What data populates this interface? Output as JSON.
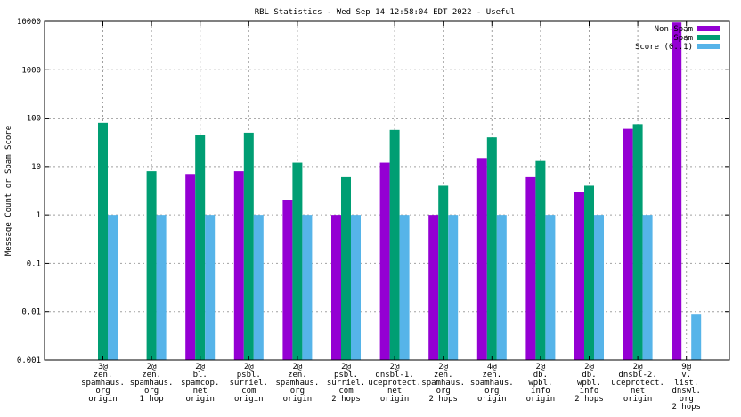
{
  "chart_data": {
    "type": "bar",
    "title": "RBL Statistics - Wed Sep 14 12:58:04 EDT 2022 - Useful",
    "ylabel": "Message Count or Spam Score",
    "xlabel": "",
    "yscale": "log",
    "ylim": [
      0.001,
      10000
    ],
    "yticks": [
      "0.001",
      "0.01",
      "0.1",
      "1",
      "10",
      "100",
      "1000",
      "10000"
    ],
    "grid": true,
    "legend_position": "top-right",
    "categories": [
      [
        "3@",
        "zen.",
        "spamhaus.",
        "org",
        "origin"
      ],
      [
        "2@",
        "zen.",
        "spamhaus.",
        "org",
        "1 hop"
      ],
      [
        "2@",
        "bl.",
        "spamcop.",
        "net",
        "origin"
      ],
      [
        "2@",
        "psbl.",
        "surriel.",
        "com",
        "origin"
      ],
      [
        "2@",
        "zen.",
        "spamhaus.",
        "org",
        "origin"
      ],
      [
        "2@",
        "psbl.",
        "surriel.",
        "com",
        "2 hops"
      ],
      [
        "2@",
        "dnsbl-1.",
        "uceprotect.",
        "net",
        "origin"
      ],
      [
        "2@",
        "zen.",
        "spamhaus.",
        "org",
        "2 hops"
      ],
      [
        "4@",
        "zen.",
        "spamhaus.",
        "org",
        "origin"
      ],
      [
        "2@",
        "db.",
        "wpbl.",
        "info",
        "origin"
      ],
      [
        "2@",
        "db.",
        "wpbl.",
        "info",
        "2 hops"
      ],
      [
        "2@",
        "dnsbl-2.",
        "uceprotect.",
        "net",
        "origin"
      ],
      [
        "9@",
        "v.",
        "list.",
        "dnswl.",
        "org",
        "2 hops"
      ]
    ],
    "series": [
      {
        "name": "Non-Spam",
        "color": "#9400d3",
        "values": [
          null,
          null,
          7,
          8,
          2,
          1,
          12,
          1,
          15,
          6,
          3,
          60,
          9500
        ]
      },
      {
        "name": "Spam",
        "color": "#009e73",
        "values": [
          80,
          8,
          45,
          50,
          12,
          6,
          57,
          4,
          40,
          13,
          4,
          75,
          null
        ]
      },
      {
        "name": "Score (0..1)",
        "color": "#56b4e9",
        "values": [
          1,
          1,
          1,
          1,
          1,
          1,
          1,
          1,
          1,
          1,
          1,
          1,
          0.009
        ]
      }
    ]
  }
}
